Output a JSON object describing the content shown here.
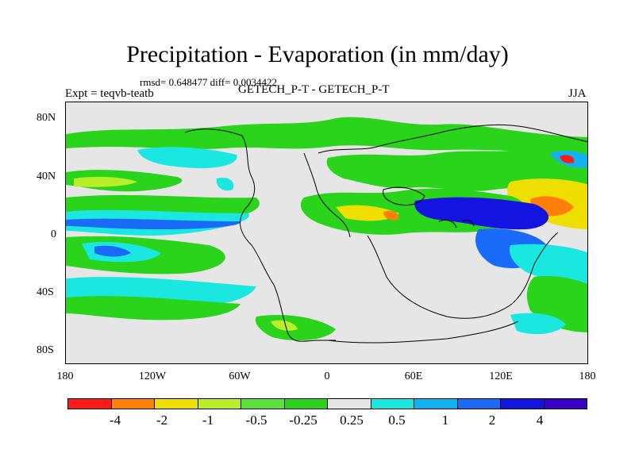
{
  "title": "Precipitation - Evaporation (in mm/day)",
  "stats": "rmsd= 0.648477 diff= 0.0034422",
  "experiment": "Expt = teqvb-teatb",
  "center_label": "GETECH_P-T - GETECH_P-T",
  "season": "JJA",
  "lat_labels": [
    "80N",
    "40N",
    "0",
    "40S",
    "80S"
  ],
  "lon_labels": [
    "180",
    "120W",
    "60W",
    "0",
    "60E",
    "120E",
    "180"
  ],
  "colorbar": {
    "colors": [
      "#ff1a1a",
      "#ff7f0a",
      "#eedf00",
      "#b8ee2a",
      "#5ce03a",
      "#2ad41a",
      "#e6e6e6",
      "#1ae8e0",
      "#12b2f2",
      "#1a6af8",
      "#1414e0",
      "#3a00c8",
      "#8e2ae8"
    ],
    "labels": [
      "-4",
      "-2",
      "-1",
      "-0.5",
      "-0.25",
      "0.25",
      "0.5",
      "1",
      "2",
      "4"
    ]
  }
}
